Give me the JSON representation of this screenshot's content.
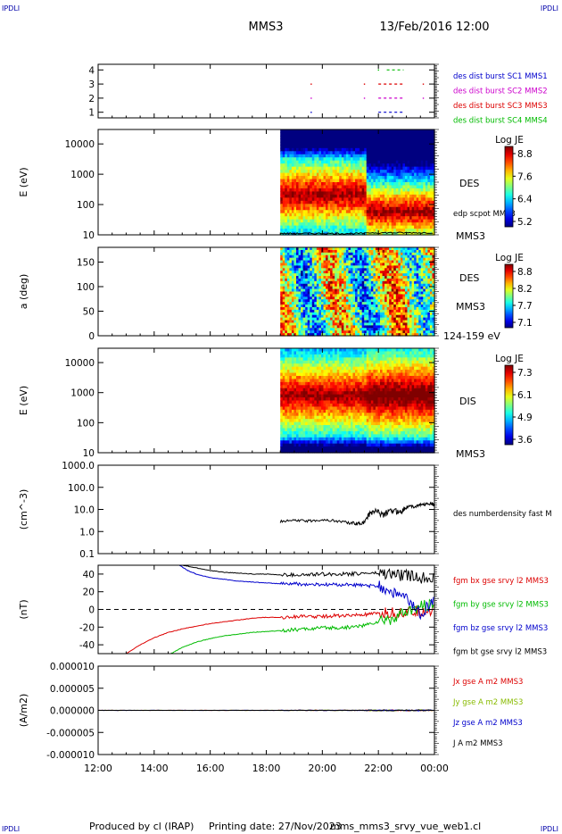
{
  "header": {
    "corner_tl": "IPDLI",
    "corner_tr": "IPDLI",
    "spacecraft": "MMS3",
    "datetime": "13/Feb/2016 12:00",
    "corner_bl": "IPDLI",
    "corner_br": "IPDLI"
  },
  "footer": {
    "produced_by": "Produced by cl (IRAP)",
    "printing_date": "Printing date: 27/Nov/2023",
    "filename": "mms_mms3_srvy_vue_web1.cl"
  },
  "x_axis": {
    "ticks": [
      "12:00",
      "14:00",
      "16:00",
      "18:00",
      "20:00",
      "22:00",
      "00:00"
    ],
    "start_hour": 12,
    "end_hour": 24
  },
  "chart_data": [
    {
      "type": "scatter",
      "panel": "burst-availability",
      "y_ticks": [
        "1",
        "2",
        "3",
        "4"
      ],
      "ylim": [
        0.6,
        4.4
      ],
      "legend": [
        {
          "label": "des dist burst SC1 MMS1",
          "color": "#0000cc"
        },
        {
          "label": "des dist burst SC2 MMS2",
          "color": "#cc00cc"
        },
        {
          "label": "des dist burst SC3 MMS3",
          "color": "#dd0000"
        },
        {
          "label": "des dist burst SC4 MMS4",
          "color": "#00bb00"
        }
      ],
      "marks": [
        {
          "level": 4,
          "hour": 22.0,
          "hour_end": 22.0,
          "color": "#00bb00"
        },
        {
          "level": 4,
          "hour": 22.3,
          "hour_end": 22.9,
          "color": "#00bb00"
        },
        {
          "level": 3,
          "hour": 19.6,
          "hour_end": 19.6,
          "color": "#dd0000"
        },
        {
          "level": 3,
          "hour": 21.5,
          "hour_end": 21.5,
          "color": "#dd0000"
        },
        {
          "level": 3,
          "hour": 22.0,
          "hour_end": 22.9,
          "color": "#dd0000"
        },
        {
          "level": 3,
          "hour": 23.6,
          "hour_end": 23.6,
          "color": "#dd0000"
        },
        {
          "level": 2,
          "hour": 19.6,
          "hour_end": 19.6,
          "color": "#cc00cc"
        },
        {
          "level": 2,
          "hour": 21.5,
          "hour_end": 21.5,
          "color": "#cc00cc"
        },
        {
          "level": 2,
          "hour": 22.0,
          "hour_end": 22.9,
          "color": "#cc00cc"
        },
        {
          "level": 2,
          "hour": 23.6,
          "hour_end": 23.6,
          "color": "#cc00cc"
        },
        {
          "level": 1,
          "hour": 19.6,
          "hour_end": 19.6,
          "color": "#0000cc"
        },
        {
          "level": 1,
          "hour": 22.0,
          "hour_end": 22.9,
          "color": "#0000cc"
        }
      ]
    },
    {
      "type": "heatmap",
      "panel": "des-energy",
      "ylabel": "E (eV)",
      "y_scale": "log",
      "ylim": [
        10,
        30000
      ],
      "y_ticks": [
        "10",
        "100",
        "1000",
        "10000"
      ],
      "data_start_hour": 18.5,
      "right_label": "DES",
      "right_sub": "MMS3",
      "overlay_label": "edp scpot MMS3",
      "colorbar": {
        "title": "Log JE",
        "ticks": [
          "8.8",
          "7.6",
          "6.4",
          "5.2"
        ]
      }
    },
    {
      "type": "heatmap",
      "panel": "des-pitch",
      "ylabel": "a (deg)",
      "ylim": [
        0,
        180
      ],
      "y_ticks": [
        "0",
        "50",
        "100",
        "150"
      ],
      "data_start_hour": 18.5,
      "right_label": "DES",
      "right_sub": "MMS3",
      "energy_range": "124-159 eV",
      "colorbar": {
        "title": "Log JE",
        "ticks": [
          "8.8",
          "8.2",
          "7.7",
          "7.1"
        ]
      }
    },
    {
      "type": "heatmap",
      "panel": "dis-energy",
      "ylabel": "E (eV)",
      "y_scale": "log",
      "ylim": [
        10,
        30000
      ],
      "y_ticks": [
        "10",
        "100",
        "1000",
        "10000"
      ],
      "data_start_hour": 18.5,
      "right_label": "DIS",
      "right_sub": "MMS3",
      "colorbar": {
        "title": "Log JE",
        "ticks": [
          "7.3",
          "6.1",
          "4.9",
          "3.6"
        ]
      }
    },
    {
      "type": "line",
      "panel": "density",
      "ylabel": "(cm^-3)",
      "y_scale": "log",
      "ylim": [
        0.1,
        1000
      ],
      "y_ticks": [
        "0.1",
        "1.0",
        "10.0",
        "100.0",
        "1000.0"
      ],
      "series": [
        {
          "name": "des numberdensity fast M",
          "color": "#000000",
          "points": [
            [
              18.5,
              2.8
            ],
            [
              19.0,
              3.2
            ],
            [
              19.5,
              3.0
            ],
            [
              20.0,
              3.4
            ],
            [
              20.5,
              3.0
            ],
            [
              21.0,
              2.5
            ],
            [
              21.3,
              2.2
            ],
            [
              21.5,
              2.6
            ],
            [
              21.7,
              6
            ],
            [
              21.9,
              9
            ],
            [
              22.2,
              6
            ],
            [
              22.5,
              9
            ],
            [
              22.8,
              8
            ],
            [
              23.0,
              13
            ],
            [
              23.3,
              14
            ],
            [
              23.6,
              17
            ],
            [
              23.9,
              18
            ],
            [
              24.0,
              16
            ]
          ]
        }
      ]
    },
    {
      "type": "line",
      "panel": "fgm",
      "ylabel": "(nT)",
      "ylim": [
        -50,
        50
      ],
      "y_ticks": [
        "-40",
        "-20",
        "0",
        "20",
        "40"
      ],
      "zero_line": true,
      "series": [
        {
          "name": "fgm bx gse srvy l2 MMS3",
          "color": "#dd0000",
          "points": [
            [
              13.0,
              -50
            ],
            [
              13.5,
              -40
            ],
            [
              14.0,
              -32
            ],
            [
              14.5,
              -26
            ],
            [
              15.0,
              -22
            ],
            [
              15.5,
              -19
            ],
            [
              16.0,
              -16
            ],
            [
              16.5,
              -14
            ],
            [
              17.0,
              -12
            ],
            [
              17.5,
              -10
            ],
            [
              18.0,
              -9
            ],
            [
              18.5,
              -9
            ],
            [
              19.0,
              -8
            ],
            [
              19.5,
              -8
            ],
            [
              20.0,
              -8
            ],
            [
              20.5,
              -7
            ],
            [
              21.0,
              -7
            ],
            [
              21.5,
              -6
            ],
            [
              22.0,
              -5
            ],
            [
              22.5,
              -4
            ],
            [
              23.0,
              -3
            ],
            [
              23.5,
              -2
            ],
            [
              24.0,
              0
            ]
          ]
        },
        {
          "name": "fgm by gse srvy l2 MMS3",
          "color": "#00bb00",
          "points": [
            [
              14.6,
              -50
            ],
            [
              15.0,
              -43
            ],
            [
              15.5,
              -37
            ],
            [
              16.0,
              -33
            ],
            [
              16.5,
              -30
            ],
            [
              17.0,
              -28
            ],
            [
              17.5,
              -26
            ],
            [
              18.0,
              -25
            ],
            [
              18.5,
              -24
            ],
            [
              19.0,
              -23
            ],
            [
              19.5,
              -22
            ],
            [
              20.0,
              -21
            ],
            [
              20.5,
              -21
            ],
            [
              21.0,
              -20
            ],
            [
              21.5,
              -18
            ],
            [
              22.0,
              -14
            ],
            [
              22.5,
              -10
            ],
            [
              23.0,
              -4
            ],
            [
              23.5,
              3
            ],
            [
              24.0,
              5
            ]
          ]
        },
        {
          "name": "fgm bz gse srvy l2 MMS3",
          "color": "#0000cc",
          "points": [
            [
              14.9,
              50
            ],
            [
              15.2,
              44
            ],
            [
              15.5,
              40
            ],
            [
              16.0,
              36
            ],
            [
              16.5,
              34
            ],
            [
              17.0,
              32
            ],
            [
              17.5,
              31
            ],
            [
              18.0,
              30
            ],
            [
              18.5,
              29
            ],
            [
              19.0,
              29
            ],
            [
              19.5,
              28
            ],
            [
              20.0,
              28
            ],
            [
              20.5,
              28
            ],
            [
              21.0,
              28
            ],
            [
              21.5,
              27
            ],
            [
              22.0,
              26
            ],
            [
              22.5,
              20
            ],
            [
              23.0,
              12
            ],
            [
              23.5,
              -5
            ],
            [
              24.0,
              10
            ]
          ]
        },
        {
          "name": "fgm bt gse srvy l2 MMS3",
          "color": "#000000",
          "points": [
            [
              15.0,
              50
            ],
            [
              15.5,
              47
            ],
            [
              16.0,
              44
            ],
            [
              16.5,
              42
            ],
            [
              17.0,
              41
            ],
            [
              17.5,
              40
            ],
            [
              18.0,
              40
            ],
            [
              18.5,
              39
            ],
            [
              19.0,
              39
            ],
            [
              19.5,
              39
            ],
            [
              20.0,
              40
            ],
            [
              20.5,
              40
            ],
            [
              21.0,
              40
            ],
            [
              21.5,
              41
            ],
            [
              22.0,
              41
            ],
            [
              22.5,
              40
            ],
            [
              23.0,
              38
            ],
            [
              23.5,
              36
            ],
            [
              24.0,
              38
            ]
          ]
        }
      ]
    },
    {
      "type": "line",
      "panel": "current",
      "ylabel": "(A/m2)",
      "ylim": [
        -0.0001,
        0.0001
      ],
      "y_ticks": [
        "-0.000010",
        "-0.000005",
        "0.000000",
        "0.000005",
        "0.000010"
      ],
      "series": [
        {
          "name": "Jx gse A m2 MMS3",
          "color": "#dd0000",
          "points": [
            [
              12,
              0
            ],
            [
              24,
              0
            ]
          ]
        },
        {
          "name": "Jy gse A m2 MMS3",
          "color": "#88bb00",
          "points": [
            [
              12,
              0
            ],
            [
              24,
              0
            ]
          ]
        },
        {
          "name": "Jz gse A m2 MMS3",
          "color": "#0000cc",
          "points": [
            [
              12,
              0
            ],
            [
              24,
              0
            ]
          ]
        },
        {
          "name": "J A m2 MMS3",
          "color": "#000000",
          "points": [
            [
              12,
              0
            ],
            [
              24,
              0
            ]
          ]
        }
      ]
    }
  ]
}
